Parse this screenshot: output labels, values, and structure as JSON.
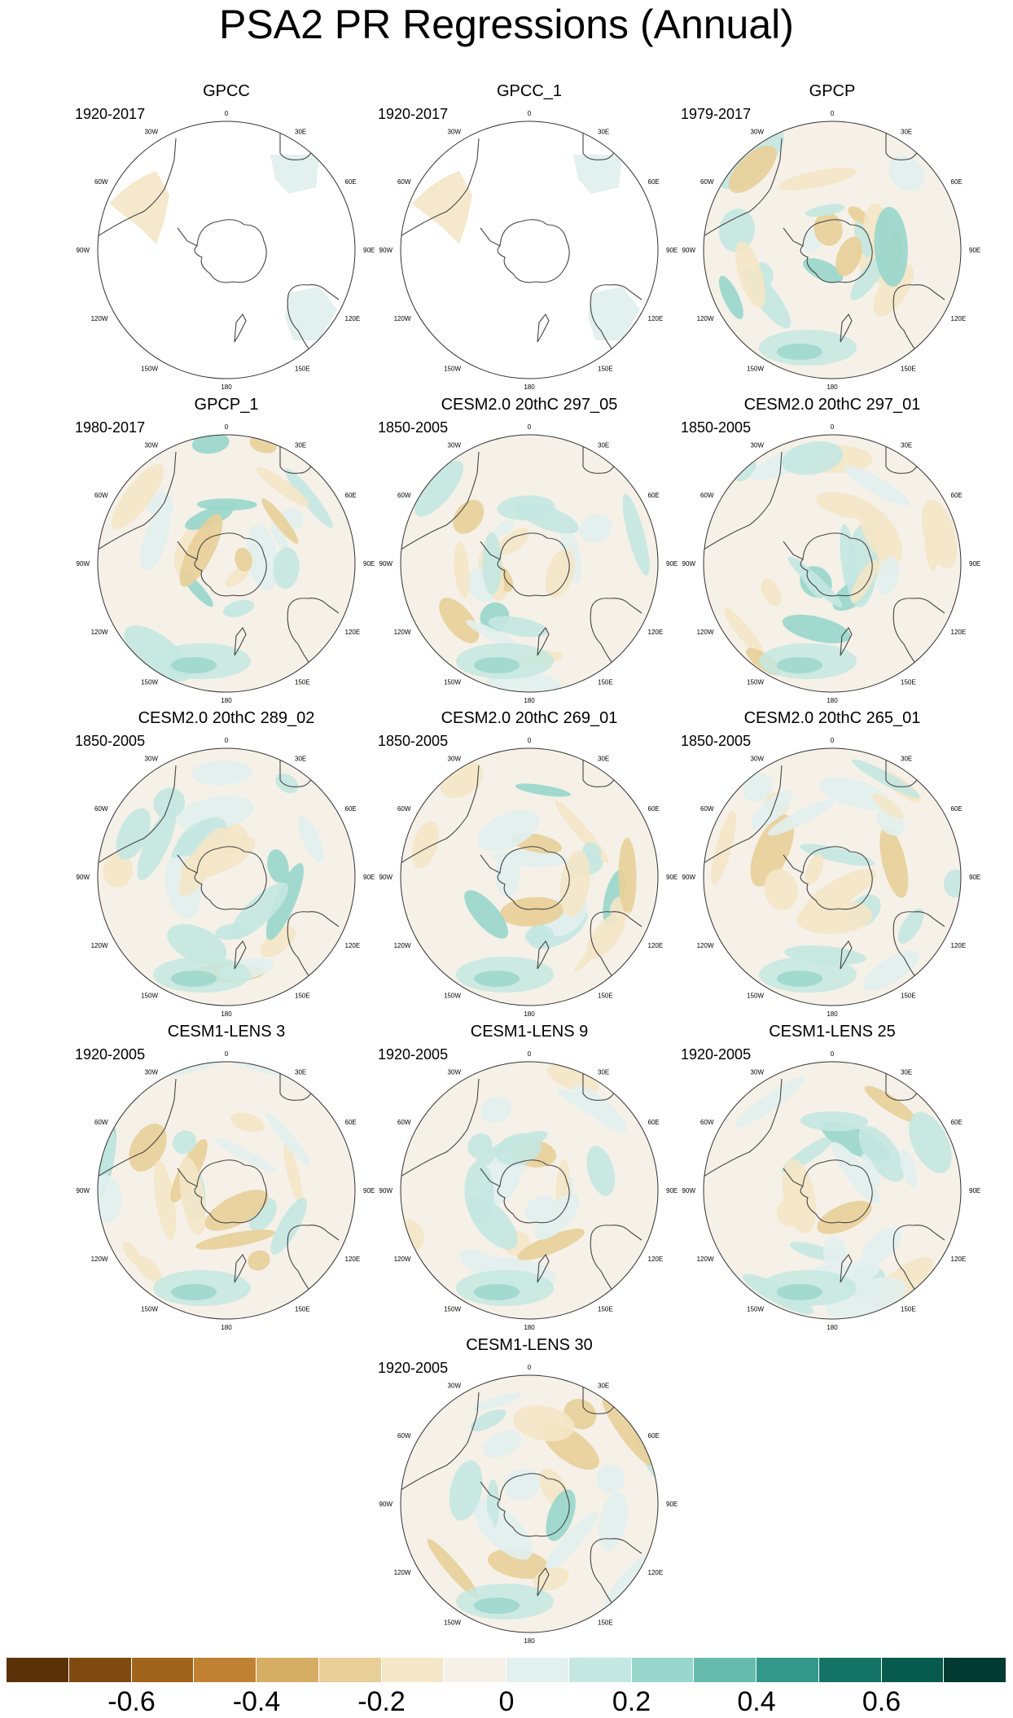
{
  "title": "PSA2 PR Regressions (Annual)",
  "longitude_labels": [
    "0",
    "30E",
    "60E",
    "90E",
    "120E",
    "150E",
    "180",
    "150W",
    "120W",
    "90W",
    "60W",
    "30W"
  ],
  "panels": [
    {
      "title": "GPCC",
      "years": "1920-2017",
      "coverage": "land"
    },
    {
      "title": "GPCC_1",
      "years": "1920-2017",
      "coverage": "land"
    },
    {
      "title": "GPCP",
      "years": "1979-2017",
      "coverage": "full"
    },
    {
      "title": "GPCP_1",
      "years": "1980-2017",
      "coverage": "full"
    },
    {
      "title": "CESM2.0 20thC 297_05",
      "years": "1850-2005",
      "coverage": "full"
    },
    {
      "title": "CESM2.0 20thC 297_01",
      "years": "1850-2005",
      "coverage": "full"
    },
    {
      "title": "CESM2.0 20thC 289_02",
      "years": "1850-2005",
      "coverage": "full"
    },
    {
      "title": "CESM2.0 20thC 269_01",
      "years": "1850-2005",
      "coverage": "full"
    },
    {
      "title": "CESM2.0 20thC 265_01",
      "years": "1850-2005",
      "coverage": "full"
    },
    {
      "title": "CESM1-LENS 3",
      "years": "1920-2005",
      "coverage": "full"
    },
    {
      "title": "CESM1-LENS 9",
      "years": "1920-2005",
      "coverage": "full"
    },
    {
      "title": "CESM1-LENS 25",
      "years": "1920-2005",
      "coverage": "full"
    },
    {
      "title": "CESM1-LENS 30",
      "years": "1920-2005",
      "coverage": "full"
    }
  ],
  "colorbar": {
    "colors": [
      "#5a3208",
      "#7e4a10",
      "#a0641c",
      "#c08232",
      "#d6ad64",
      "#e8cf98",
      "#f4e6c6",
      "#f5f1e8",
      "#e2f0ee",
      "#c4e7e1",
      "#98d6cb",
      "#66bbad",
      "#33978a",
      "#137466",
      "#065a4e",
      "#003a30"
    ],
    "labels": [
      "-0.6",
      "-0.4",
      "-0.2",
      "0",
      "0.2",
      "0.4",
      "0.6"
    ],
    "label_bounds": [
      -0.6,
      -0.4,
      -0.2,
      0,
      0.2,
      0.4,
      0.6
    ],
    "min": -0.8,
    "max": 0.8
  }
}
